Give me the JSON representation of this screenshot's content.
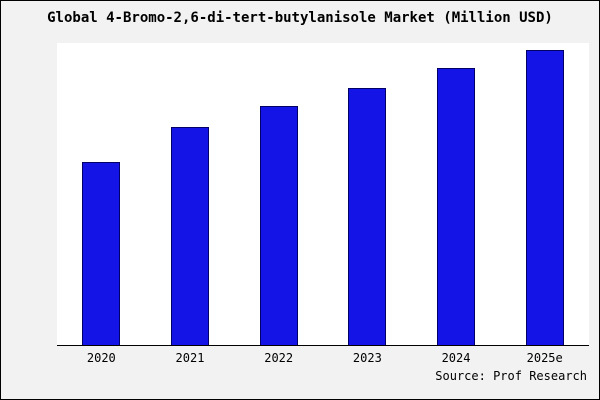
{
  "page": {
    "title": "Global 4-Bromo-2,6-di-tert-butylanisole Market (Million USD)",
    "source": "Source: Prof Research"
  },
  "colors": {
    "bar_fill": "#1414e6",
    "bar_border": "#000066",
    "background": "#f2f2f2",
    "plot_background": "#ffffff"
  },
  "chart_data": {
    "type": "bar",
    "title": "Global 4-Bromo-2,6-di-tert-butylanisole Market (Million USD)",
    "categories": [
      "2020",
      "2021",
      "2022",
      "2023",
      "2024",
      "2025e"
    ],
    "values": [
      62,
      74,
      81,
      87,
      94,
      100
    ],
    "xlabel": "",
    "ylabel": "",
    "ylim": [
      0,
      100
    ],
    "grid": false,
    "legend": false,
    "value_note": "values estimated from bar heights; no y-axis labels shown",
    "annotation": "Source: Prof Research"
  }
}
